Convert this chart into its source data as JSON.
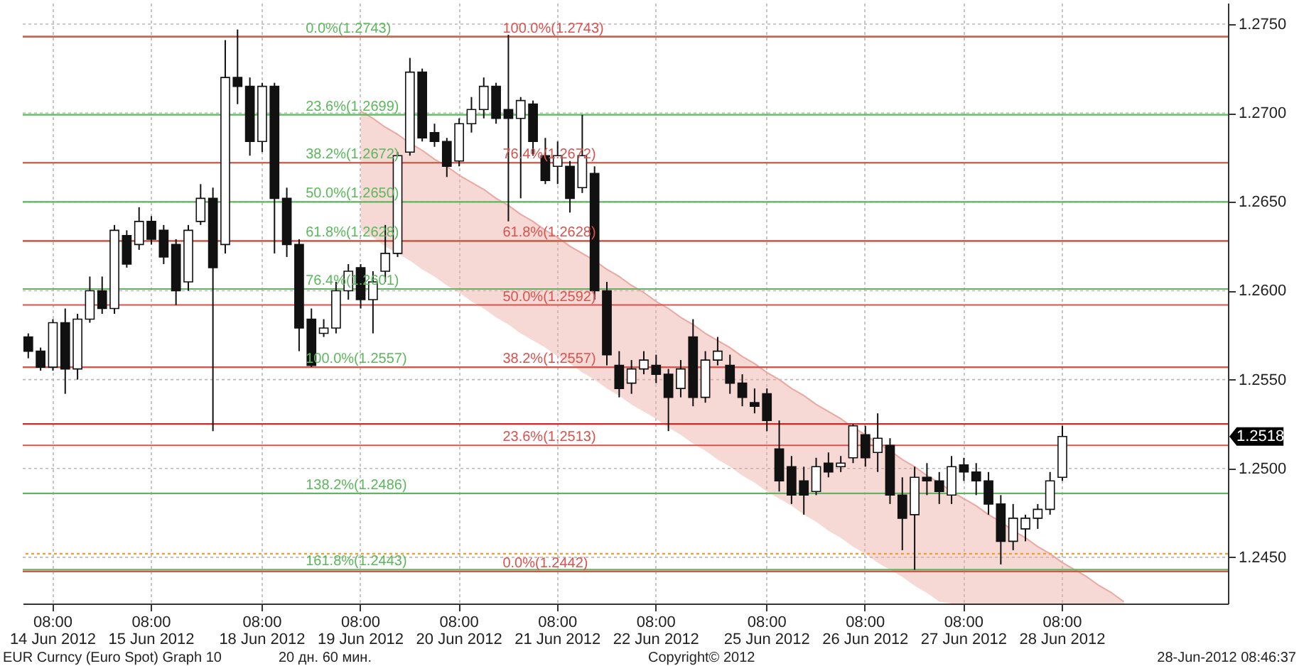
{
  "chart_data": {
    "type": "candlestick",
    "categories": [
      null,
      null,
      "08:00\n14 Jun 2012",
      null,
      null,
      null,
      null,
      null,
      null,
      null,
      "08:00\n15 Jun 2012",
      null,
      null,
      null,
      null,
      null,
      null,
      null,
      null,
      "08:00\n18 Jun 2012",
      null,
      null,
      null,
      null,
      null,
      null,
      null,
      "08:00\n19 Jun 2012",
      null,
      null,
      null,
      null,
      null,
      null,
      null,
      "08:00\n20 Jun 2012",
      null,
      null,
      null,
      null,
      null,
      null,
      null,
      "08:00\n21 Jun 2012",
      null,
      null,
      null,
      null,
      null,
      null,
      null,
      "08:00\n22 Jun 2012",
      null,
      null,
      null,
      null,
      null,
      null,
      null,
      null,
      "08:00\n25 Jun 2012",
      null,
      null,
      null,
      null,
      null,
      null,
      null,
      "08:00\n26 Jun 2012",
      null,
      null,
      null,
      null,
      null,
      null,
      null,
      "08:00\n27 Jun 2012",
      null,
      null,
      null,
      null,
      null,
      null,
      null,
      "08:00\n28 Jun 2012",
      null,
      null,
      null,
      null,
      null,
      null,
      null,
      null,
      null,
      null,
      null,
      null,
      null
    ],
    "ohlc": [
      [
        1.2574,
        1.2576,
        1.2562,
        1.2566
      ],
      [
        1.2566,
        1.2568,
        1.2555,
        1.2557
      ],
      [
        1.2557,
        1.2584,
        1.2555,
        1.2582
      ],
      [
        1.2582,
        1.259,
        1.2542,
        1.2556
      ],
      [
        1.2556,
        1.2587,
        1.255,
        1.2584
      ],
      [
        1.2584,
        1.2608,
        1.2582,
        1.26
      ],
      [
        1.26,
        1.2608,
        1.2587,
        1.259
      ],
      [
        1.259,
        1.2637,
        1.2587,
        1.2634
      ],
      [
        1.2631,
        1.2634,
        1.2613,
        1.2615
      ],
      [
        1.2626,
        1.2647,
        1.2623,
        1.2639
      ],
      [
        1.2639,
        1.2642,
        1.2626,
        1.2629
      ],
      [
        1.2634,
        1.2637,
        1.2615,
        1.2619
      ],
      [
        1.2626,
        1.2629,
        1.2592,
        1.26
      ],
      [
        1.2605,
        1.2637,
        1.26,
        1.2634
      ],
      [
        1.2639,
        1.266,
        1.2637,
        1.2652
      ],
      [
        1.2652,
        1.2658,
        1.2521,
        1.2613
      ],
      [
        1.2626,
        1.2741,
        1.2621,
        1.272
      ],
      [
        1.272,
        1.2747,
        1.2705,
        1.2715
      ],
      [
        1.2715,
        1.272,
        1.2676,
        1.2684
      ],
      [
        1.2684,
        1.2717,
        1.2678,
        1.2715
      ],
      [
        1.2715,
        1.2717,
        1.2621,
        1.2652
      ],
      [
        1.2652,
        1.2658,
        1.2619,
        1.2626
      ],
      [
        1.2626,
        1.2629,
        1.2566,
        1.2579
      ],
      [
        1.2584,
        1.259,
        1.2557,
        1.2558
      ],
      [
        1.2576,
        1.2584,
        1.2574,
        1.2579
      ],
      [
        1.2579,
        1.2605,
        1.2576,
        1.26
      ],
      [
        1.26,
        1.2615,
        1.2595,
        1.2611
      ],
      [
        1.2613,
        1.2615,
        1.259,
        1.2595
      ],
      [
        1.2595,
        1.2611,
        1.2576,
        1.2605
      ],
      [
        1.2611,
        1.2637,
        1.2605,
        1.2621
      ],
      [
        1.2621,
        1.2678,
        1.2619,
        1.2676
      ],
      [
        1.2678,
        1.2731,
        1.2676,
        1.2723
      ],
      [
        1.2723,
        1.2725,
        1.2684,
        1.2686
      ],
      [
        1.2689,
        1.2694,
        1.2681,
        1.2684
      ],
      [
        1.2684,
        1.2686,
        1.2664,
        1.267
      ],
      [
        1.2673,
        1.2697,
        1.267,
        1.2694
      ],
      [
        1.2694,
        1.2709,
        1.2689,
        1.2702
      ],
      [
        1.2702,
        1.272,
        1.2697,
        1.2715
      ],
      [
        1.2715,
        1.2717,
        1.2694,
        1.2697
      ],
      [
        1.2702,
        1.2744,
        1.2639,
        1.2697
      ],
      [
        1.2697,
        1.2709,
        1.2652,
        1.2707
      ],
      [
        1.2705,
        1.2707,
        1.2676,
        1.2684
      ],
      [
        1.2676,
        1.2686,
        1.266,
        1.2662
      ],
      [
        1.267,
        1.2684,
        1.266,
        1.2676
      ],
      [
        1.267,
        1.2673,
        1.2644,
        1.2652
      ],
      [
        1.2658,
        1.2699,
        1.2655,
        1.2676
      ],
      [
        1.2666,
        1.267,
        1.2595,
        1.26
      ],
      [
        1.26,
        1.2605,
        1.2558,
        1.2564
      ],
      [
        1.2558,
        1.2566,
        1.254,
        1.2545
      ],
      [
        1.2548,
        1.2561,
        1.2542,
        1.2556
      ],
      [
        1.2556,
        1.2566,
        1.2553,
        1.2561
      ],
      [
        1.2558,
        1.2564,
        1.2548,
        1.2553
      ],
      [
        1.2553,
        1.2556,
        1.2521,
        1.254
      ],
      [
        1.2545,
        1.2561,
        1.254,
        1.2556
      ],
      [
        1.2574,
        1.2584,
        1.2535,
        1.254
      ],
      [
        1.254,
        1.2566,
        1.2537,
        1.2561
      ],
      [
        1.2561,
        1.2574,
        1.2558,
        1.2566
      ],
      [
        1.2558,
        1.2564,
        1.2542,
        1.2548
      ],
      [
        1.2548,
        1.2553,
        1.2535,
        1.254
      ],
      [
        1.2537,
        1.2545,
        1.2531,
        1.2535
      ],
      [
        1.2542,
        1.2545,
        1.2521,
        1.2527
      ],
      [
        1.2511,
        1.2527,
        1.2487,
        1.2493
      ],
      [
        1.2501,
        1.2507,
        1.248,
        1.2485
      ],
      [
        1.2493,
        1.2501,
        1.2474,
        1.2485
      ],
      [
        1.2487,
        1.2506,
        1.2485,
        1.2501
      ],
      [
        1.2503,
        1.2509,
        1.2495,
        1.2498
      ],
      [
        1.2501,
        1.2507,
        1.2498,
        1.2503
      ],
      [
        1.2506,
        1.2525,
        1.2503,
        1.2524
      ],
      [
        1.2519,
        1.2524,
        1.2501,
        1.2506
      ],
      [
        1.2509,
        1.2531,
        1.2498,
        1.2517
      ],
      [
        1.2513,
        1.2517,
        1.248,
        1.2485
      ],
      [
        1.2485,
        1.2495,
        1.2454,
        1.2472
      ],
      [
        1.2474,
        1.2501,
        1.2443,
        1.2495
      ],
      [
        1.2495,
        1.2503,
        1.2485,
        1.2493
      ],
      [
        1.2493,
        1.2498,
        1.248,
        1.2487
      ],
      [
        1.2485,
        1.2507,
        1.248,
        1.2501
      ],
      [
        1.2502,
        1.2506,
        1.2493,
        1.2498
      ],
      [
        1.2498,
        1.2503,
        1.2485,
        1.2493
      ],
      [
        1.2493,
        1.2498,
        1.2474,
        1.248
      ],
      [
        1.248,
        1.2485,
        1.2446,
        1.2459
      ],
      [
        1.2459,
        1.248,
        1.2454,
        1.2472
      ],
      [
        1.2466,
        1.2474,
        1.2459,
        1.2472
      ],
      [
        1.2472,
        1.248,
        1.2466,
        1.2477
      ],
      [
        1.2477,
        1.2498,
        1.2474,
        1.2493
      ],
      [
        1.2495,
        1.2524,
        1.2493,
        1.2518
      ],
      null,
      null,
      null,
      null,
      null,
      null,
      null,
      null,
      null,
      null,
      null,
      null,
      null
    ],
    "series": [
      {
        "type": "line",
        "color": "#eaa8a0",
        "values": [
          null,
          null,
          null,
          null,
          null,
          null,
          null,
          null,
          null,
          null,
          null,
          null,
          null,
          null,
          null,
          null,
          null,
          null,
          null,
          null,
          null,
          null,
          null,
          null,
          null,
          null,
          null,
          1.2701,
          1.2697,
          1.2692,
          1.2688,
          1.2683,
          1.2679,
          1.2674,
          1.267,
          1.2665,
          1.2661,
          1.2657,
          1.2652,
          1.2648,
          1.2643,
          1.2639,
          1.2634,
          1.263,
          1.2625,
          1.2621,
          1.2617,
          1.2612,
          1.2608,
          1.2603,
          1.2599,
          1.2594,
          1.259,
          1.2585,
          1.2581,
          1.2576,
          1.2572,
          1.2568,
          1.2563,
          1.2559,
          1.2554,
          1.255,
          1.2545,
          1.2541,
          1.2536,
          1.2532,
          1.2528,
          1.2523,
          1.2519,
          1.2514,
          1.251,
          1.2505,
          1.2501,
          1.2496,
          1.2492,
          1.2487,
          1.2483,
          1.2479,
          1.2474,
          1.247,
          1.2465,
          1.2461,
          1.2456,
          1.2452,
          1.2447,
          1.2443,
          1.2439,
          1.2434,
          1.243,
          1.2425,
          null,
          null,
          null,
          null,
          null,
          null,
          null,
          null
        ],
        "upper": [
          null,
          null,
          null,
          null,
          null,
          null,
          null,
          null,
          null,
          null,
          null,
          null,
          null,
          null,
          null,
          null,
          null,
          null,
          null,
          null,
          null,
          null,
          null,
          null,
          null,
          null,
          null,
          1.2701,
          1.2697,
          1.2692,
          1.2688,
          1.2683,
          1.2679,
          1.2674,
          1.267,
          1.2665,
          1.2661,
          1.2657,
          1.2652,
          1.2648,
          1.2643,
          1.2639,
          1.2634,
          1.263,
          1.2625,
          1.2621,
          1.2617,
          1.2612,
          1.2608,
          1.2603,
          1.2599,
          1.2594,
          1.259,
          1.2585,
          1.2581,
          1.2576,
          1.2572,
          1.2568,
          1.2563,
          1.2559,
          1.2554,
          1.255,
          1.2545,
          1.2541,
          1.2536,
          1.2532,
          1.2528,
          1.2523,
          1.2519,
          1.2514,
          1.251,
          1.2505,
          1.2501,
          1.2496,
          1.2492,
          1.2487,
          1.2483,
          1.2479,
          1.2474,
          1.247,
          1.2465,
          1.2461,
          1.2456,
          1.2452,
          1.2447,
          1.2443,
          1.2439,
          1.2434,
          1.243,
          1.2425,
          null,
          null,
          null,
          null,
          null,
          null,
          null,
          null
        ],
        "lower": [
          null,
          null,
          null,
          null,
          null,
          null,
          null,
          null,
          null,
          null,
          null,
          null,
          null,
          null,
          null,
          null,
          null,
          null,
          null,
          null,
          null,
          null,
          null,
          null,
          null,
          null,
          null,
          1.2634,
          1.263,
          1.2625,
          1.2621,
          1.2617,
          1.2612,
          1.2608,
          1.2603,
          1.2599,
          1.2594,
          1.259,
          1.2585,
          1.2581,
          1.2576,
          1.2572,
          1.2568,
          1.2563,
          1.2559,
          1.2554,
          1.255,
          1.2545,
          1.2541,
          1.2536,
          1.2532,
          1.2528,
          1.2523,
          1.2519,
          1.2514,
          1.251,
          1.2505,
          1.2501,
          1.2496,
          1.2492,
          1.2487,
          1.2483,
          1.2479,
          1.2474,
          1.247,
          1.2465,
          1.2461,
          1.2456,
          1.2452,
          1.2447,
          1.2443,
          1.2439,
          1.2434,
          1.243,
          1.2425,
          1.2424,
          1.2424,
          1.2424,
          1.2424,
          1.2424,
          1.2424,
          1.2424,
          1.2424,
          1.2424,
          1.2424,
          1.2424,
          1.2424,
          1.2424,
          1.2424,
          1.2424,
          null,
          null,
          null,
          null,
          null,
          null,
          null,
          null
        ]
      }
    ],
    "ylim": [
      1.2424,
      1.2762
    ],
    "yticks": [
      {
        "value": 1.245,
        "label": "1.2450"
      },
      {
        "value": 1.25,
        "label": "1.2500"
      },
      {
        "value": 1.255,
        "label": "1.2550"
      },
      {
        "value": 1.26,
        "label": "1.2600"
      },
      {
        "value": 1.265,
        "label": "1.2650"
      },
      {
        "value": 1.27,
        "label": "1.2700"
      },
      {
        "value": 1.275,
        "label": "1.2750"
      }
    ],
    "grid": true,
    "ref_lines": [
      {
        "axis": "y",
        "value": 1.2743,
        "label": "0.0%(1.2743)",
        "color": "#5cb85c"
      },
      {
        "axis": "y",
        "value": 1.2699,
        "label": "23.6%(1.2699)",
        "color": "#5cb85c"
      },
      {
        "axis": "y",
        "value": 1.2672,
        "label": "38.2%(1.2672)",
        "color": "#5cb85c"
      },
      {
        "axis": "y",
        "value": 1.265,
        "label": "50.0%(1.2650)",
        "color": "#5cb85c"
      },
      {
        "axis": "y",
        "value": 1.2628,
        "label": "61.8%(1.2628)",
        "color": "#5cb85c"
      },
      {
        "axis": "y",
        "value": 1.2601,
        "label": "76.4%(1.2601)",
        "color": "#5cb85c"
      },
      {
        "axis": "y",
        "value": 1.2557,
        "label": "100.0%(1.2557)",
        "color": "#5cb85c"
      },
      {
        "axis": "y",
        "value": 1.2486,
        "label": "138.2%(1.2486)",
        "color": "#5cb85c"
      },
      {
        "axis": "y",
        "value": 1.2443,
        "label": "161.8%(1.2443)",
        "color": "#5cb85c"
      },
      {
        "axis": "y",
        "value": 1.2743,
        "label": "100.0%(1.2743)",
        "color": "#d9534f"
      },
      {
        "axis": "y",
        "value": 1.2672,
        "label": "76.4%(1.2672)",
        "color": "#d9534f"
      },
      {
        "axis": "y",
        "value": 1.2628,
        "label": "61.8%(1.2628)",
        "color": "#d9534f"
      },
      {
        "axis": "y",
        "value": 1.2592,
        "label": "50.0%(1.2592)",
        "color": "#d9534f"
      },
      {
        "axis": "y",
        "value": 1.2557,
        "label": "38.2%(1.2557)",
        "color": "#d9534f"
      },
      {
        "axis": "y",
        "value": 1.2513,
        "label": "23.6%(1.2513)",
        "color": "#d9534f"
      },
      {
        "axis": "y",
        "value": 1.2442,
        "label": "0.0%(1.2442)",
        "color": "#d9534f"
      },
      {
        "axis": "y",
        "value": 1.2452,
        "color": "#f0a030",
        "line_style": "dotted"
      },
      {
        "axis": "y",
        "value": 1.2525,
        "color": "#d02828"
      }
    ],
    "annotations": [
      "1.2518",
      "EUR Curncy (Euro Spot) Graph 10",
      "20 дн. 60 мин.",
      "Copyright© 2012",
      "28-Jun-2012 08:46:37"
    ]
  }
}
